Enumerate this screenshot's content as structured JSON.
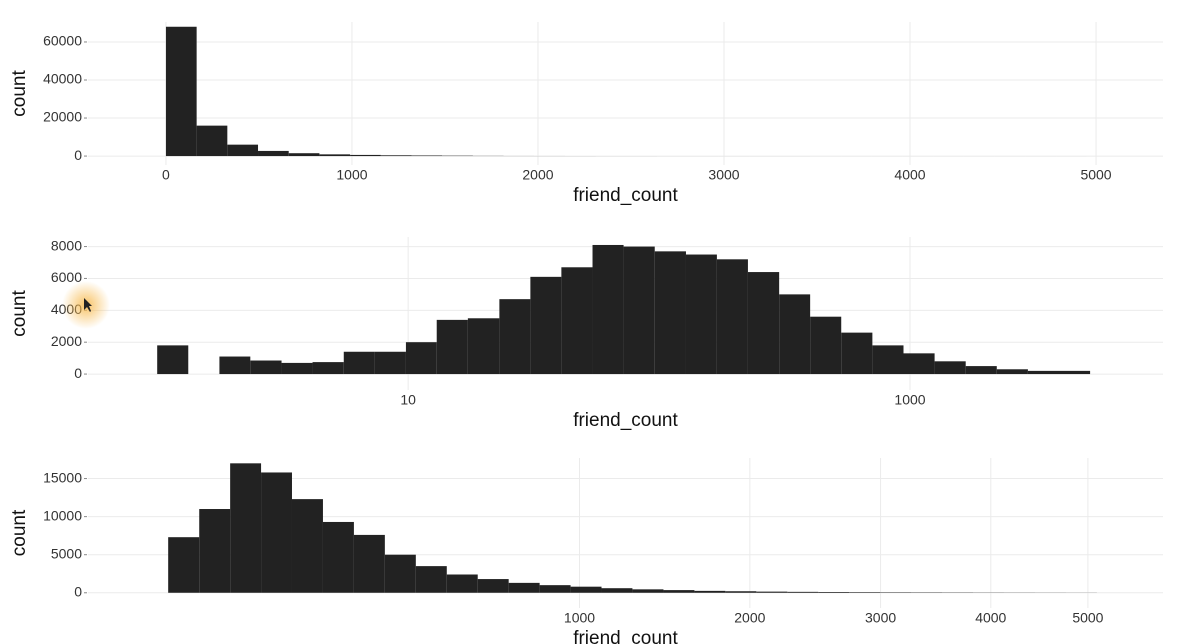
{
  "chart_data": [
    {
      "type": "histogram",
      "xscale": "linear",
      "xlabel": "friend_count",
      "ylabel": "count",
      "color": "#222222",
      "grid": true,
      "bins": [
        0,
        165,
        330,
        495,
        660,
        825,
        990,
        1155,
        1320,
        1485,
        1650,
        1815,
        1980,
        2145,
        2310,
        2475,
        2640,
        2805,
        2970,
        3135,
        3300,
        3465,
        3630,
        3795,
        3960,
        4125,
        4290,
        4455,
        4620,
        4785,
        4950
      ],
      "values": [
        68000,
        16000,
        6000,
        2700,
        1500,
        900,
        600,
        400,
        300,
        200,
        100,
        50,
        40,
        30,
        20,
        20,
        10,
        10,
        10,
        10,
        10,
        5,
        5,
        5,
        5,
        5,
        5,
        5,
        5,
        5
      ],
      "xlim": [
        -419,
        5360
      ],
      "ylim": [
        -4700,
        70500
      ],
      "xticks": [
        0,
        1000,
        2000,
        3000,
        4000,
        5000
      ],
      "yticks": [
        0,
        20000,
        40000,
        60000
      ]
    },
    {
      "type": "histogram",
      "xscale": "log",
      "xlabel": "friend_count",
      "ylabel": "count",
      "color": "#222222",
      "grid": true,
      "bins": [
        1,
        1.33,
        1.77,
        2.35,
        3.13,
        4.16,
        5.54,
        7.37,
        9.8,
        13,
        17.3,
        23.1,
        30.7,
        40.8,
        54.3,
        72.2,
        96.1,
        128,
        170,
        226,
        301,
        400,
        532,
        708,
        942,
        1253,
        1667,
        2217,
        2950,
        3924,
        5220
      ],
      "values": [
        1800,
        0,
        1100,
        850,
        700,
        750,
        1400,
        1400,
        2000,
        3400,
        3500,
        4700,
        6100,
        6700,
        8100,
        8000,
        7700,
        7500,
        7200,
        6400,
        5000,
        3600,
        2600,
        1800,
        1300,
        800,
        500,
        300,
        200,
        200
      ],
      "xlim": [
        0.53,
        10190
      ],
      "ylim": [
        -1000,
        8600
      ],
      "xticks": [
        10,
        1000
      ],
      "yticks": [
        0,
        2000,
        4000,
        6000,
        8000
      ]
    },
    {
      "type": "histogram",
      "xscale": "sqrt",
      "xlabel": "friend_count",
      "ylabel": "count",
      "color": "#222222",
      "grid": true,
      "bins": [
        0,
        5.7,
        22.7,
        51,
        90.6,
        141.6,
        203.9,
        277.5,
        362.5,
        458.8,
        566.4,
        685.3,
        815.6,
        957.2,
        1110,
        1274,
        1450,
        1637,
        1835,
        2045,
        2266,
        2498,
        2741,
        2996,
        3262,
        3540,
        3829,
        4129,
        4441,
        4764,
        5098
      ],
      "values": [
        7300,
        11000,
        17000,
        15800,
        12300,
        9300,
        7600,
        5000,
        3500,
        2400,
        1800,
        1300,
        1000,
        800,
        600,
        450,
        350,
        250,
        200,
        150,
        120,
        100,
        80,
        60,
        50,
        40,
        30,
        25,
        20,
        15
      ],
      "xlim": [
        -38,
        5850
      ],
      "ylim": [
        -2000,
        17700
      ],
      "xticks": [
        1000,
        2000,
        3000,
        4000,
        5000
      ],
      "yticks": [
        0,
        5000,
        10000,
        15000
      ]
    }
  ]
}
